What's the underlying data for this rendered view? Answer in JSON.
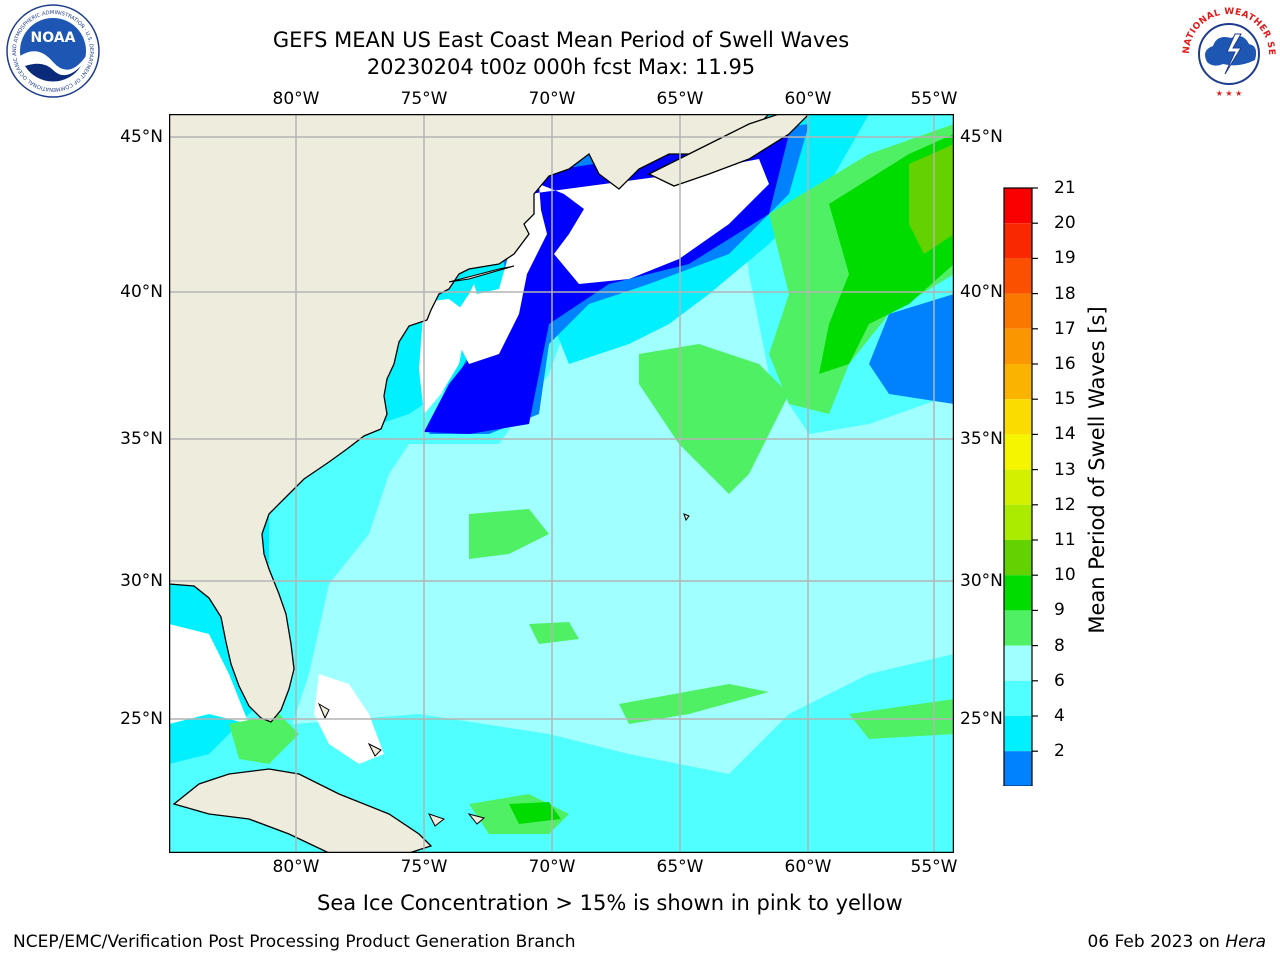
{
  "title": {
    "line1": "GEFS MEAN US East Coast Mean Period of Swell Waves",
    "line2": "20230204 t00z 000h fcst   Max: 11.95"
  },
  "logos": {
    "left": {
      "name": "noaa-logo",
      "text": "NOAA",
      "ring_text": "NATIONAL OCEANIC AND ATMOSPHERIC ADMINISTRATION · U.S. DEPARTMENT OF COMMERCE"
    },
    "right": {
      "name": "nws-logo",
      "ring_text": "NATIONAL WEATHER SERVICE"
    }
  },
  "map": {
    "lon_labels": [
      "80°W",
      "75°W",
      "70°W",
      "65°W",
      "60°W",
      "55°W"
    ],
    "lat_labels": [
      "45°N",
      "40°N",
      "35°N",
      "30°N",
      "25°N"
    ],
    "colors": {
      "land": "#eeecdc",
      "coast": "#000000",
      "grid": "#b4b4b4",
      "no_data": "#ffffff"
    }
  },
  "colorbar": {
    "label": "Mean Period of Swell Waves [s]",
    "ticks": [
      "21",
      "20",
      "19",
      "18",
      "17",
      "16",
      "15",
      "14",
      "13",
      "12",
      "11",
      "10",
      "9",
      "8",
      "6",
      "4",
      "2"
    ],
    "colors_top_to_bottom": [
      "#fa0000",
      "#fa2800",
      "#fa5000",
      "#fa7800",
      "#fa9600",
      "#fab400",
      "#fadc00",
      "#f5f500",
      "#d2f000",
      "#aaeb00",
      "#64d200",
      "#00dc00",
      "#50f064",
      "#a0ffff",
      "#50ffff",
      "#00f0ff",
      "#0082ff"
    ],
    "extend_color": "#0000ff"
  },
  "footnote": "Sea Ice Concentration > 15% is shown in pink to yellow",
  "credit": "NCEP/EMC/Verification Post Processing Product Generation Branch",
  "date": {
    "text": "06 Feb 2023 on ",
    "machine": "Hera"
  }
}
